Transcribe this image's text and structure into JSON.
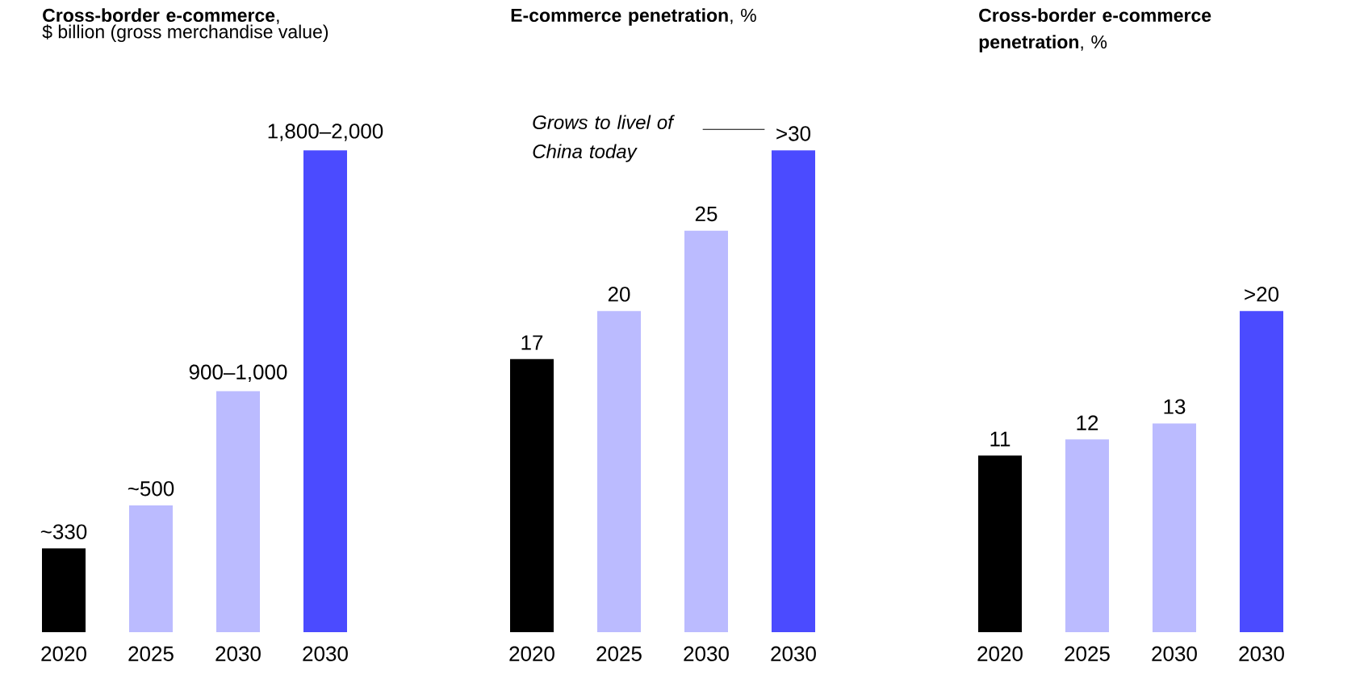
{
  "chart_data": [
    {
      "type": "bar",
      "title": "**Cross-border e-commerce**,",
      "subtitle": "$ billion (gross merchandise value)",
      "categories": [
        "2020",
        "2025",
        "2030",
        "2030"
      ],
      "values": [
        330,
        500,
        950,
        1900
      ],
      "value_labels": [
        "~330",
        "~500",
        "900–1,000",
        "1,800–2,000"
      ],
      "colors": [
        "#000000",
        "#bbbbff",
        "#bbbbff",
        "#4b4bff"
      ]
    },
    {
      "type": "bar",
      "title": "**E-commerce penetration**, %",
      "categories": [
        "2020",
        "2025",
        "2030",
        "2030"
      ],
      "values": [
        17,
        20,
        25,
        30
      ],
      "value_labels": [
        "17",
        "20",
        "25",
        ">30"
      ],
      "colors": [
        "#000000",
        "#bbbbff",
        "#bbbbff",
        "#4b4bff"
      ],
      "annotations": [
        "*Grows to livel of China today*"
      ]
    },
    {
      "type": "bar",
      "title": "**Cross-border e-commerce penetration**, %",
      "categories": [
        "2020",
        "2025",
        "2030",
        "2030"
      ],
      "values": [
        11,
        12,
        13,
        20
      ],
      "value_labels": [
        "11",
        "12",
        "13",
        ">20"
      ],
      "colors": [
        "#000000",
        "#bbbbff",
        "#bbbbff",
        "#4b4bff"
      ]
    }
  ]
}
